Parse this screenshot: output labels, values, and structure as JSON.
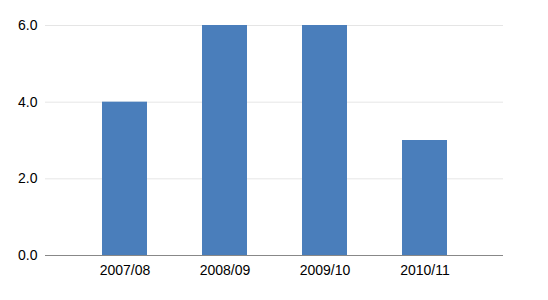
{
  "chart_data": {
    "type": "bar",
    "categories": [
      "2007/08",
      "2008/09",
      "2009/10",
      "2010/11"
    ],
    "values": [
      4,
      6,
      6,
      3
    ],
    "color": "#4a7ebb",
    "ylim": [
      0,
      6
    ],
    "yticks": [
      0,
      2,
      4,
      6
    ],
    "grid": true
  }
}
